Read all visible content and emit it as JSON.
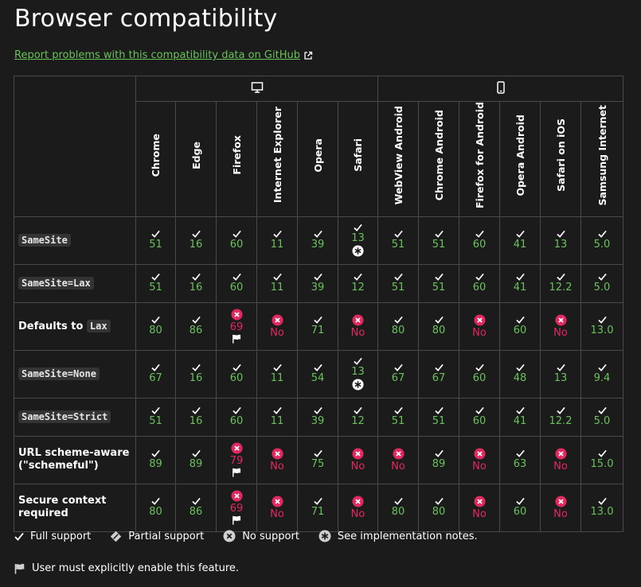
{
  "title": "Browser compatibility",
  "report_link": "Report problems with this compatibility data on GitHub",
  "platforms": [
    {
      "name": "desktop-icon",
      "span": 6
    },
    {
      "name": "mobile-icon",
      "span": 6
    }
  ],
  "browsers": [
    "Chrome",
    "Edge",
    "Firefox",
    "Internet Explorer",
    "Opera",
    "Safari",
    "WebView Android",
    "Chrome Android",
    "Firefox for Android",
    "Opera Android",
    "Safari on iOS",
    "Samsung Internet"
  ],
  "rows": [
    {
      "label": "",
      "code": "SameSite",
      "after": "",
      "height": 60,
      "cells": [
        {
          "s": "yes",
          "v": "51"
        },
        {
          "s": "yes",
          "v": "16"
        },
        {
          "s": "yes",
          "v": "60"
        },
        {
          "s": "yes",
          "v": "11"
        },
        {
          "s": "yes",
          "v": "39"
        },
        {
          "s": "yes",
          "v": "13",
          "note": true
        },
        {
          "s": "yes",
          "v": "51"
        },
        {
          "s": "yes",
          "v": "51"
        },
        {
          "s": "yes",
          "v": "60"
        },
        {
          "s": "yes",
          "v": "41"
        },
        {
          "s": "yes",
          "v": "13"
        },
        {
          "s": "yes",
          "v": "5.0"
        }
      ]
    },
    {
      "label": "",
      "code": "SameSite=Lax",
      "after": "",
      "height": 48,
      "cells": [
        {
          "s": "yes",
          "v": "51"
        },
        {
          "s": "yes",
          "v": "16"
        },
        {
          "s": "yes",
          "v": "60"
        },
        {
          "s": "yes",
          "v": "11"
        },
        {
          "s": "yes",
          "v": "39"
        },
        {
          "s": "yes",
          "v": "12"
        },
        {
          "s": "yes",
          "v": "51"
        },
        {
          "s": "yes",
          "v": "51"
        },
        {
          "s": "yes",
          "v": "60"
        },
        {
          "s": "yes",
          "v": "41"
        },
        {
          "s": "yes",
          "v": "12.2"
        },
        {
          "s": "yes",
          "v": "5.0"
        }
      ]
    },
    {
      "label": "Defaults to ",
      "code": "Lax",
      "after": "",
      "height": 60,
      "cells": [
        {
          "s": "yes",
          "v": "80"
        },
        {
          "s": "yes",
          "v": "86"
        },
        {
          "s": "no",
          "v": "69",
          "flag": true
        },
        {
          "s": "no",
          "v": "No"
        },
        {
          "s": "yes",
          "v": "71"
        },
        {
          "s": "no",
          "v": "No"
        },
        {
          "s": "yes",
          "v": "80"
        },
        {
          "s": "yes",
          "v": "80"
        },
        {
          "s": "no",
          "v": "No"
        },
        {
          "s": "yes",
          "v": "60"
        },
        {
          "s": "no",
          "v": "No"
        },
        {
          "s": "yes",
          "v": "13.0"
        }
      ]
    },
    {
      "label": "",
      "code": "SameSite=None",
      "after": "",
      "height": 60,
      "cells": [
        {
          "s": "yes",
          "v": "67"
        },
        {
          "s": "yes",
          "v": "16"
        },
        {
          "s": "yes",
          "v": "60"
        },
        {
          "s": "yes",
          "v": "11"
        },
        {
          "s": "yes",
          "v": "54"
        },
        {
          "s": "yes",
          "v": "13",
          "note": true
        },
        {
          "s": "yes",
          "v": "67"
        },
        {
          "s": "yes",
          "v": "67"
        },
        {
          "s": "yes",
          "v": "60"
        },
        {
          "s": "yes",
          "v": "48"
        },
        {
          "s": "yes",
          "v": "13"
        },
        {
          "s": "yes",
          "v": "9.4"
        }
      ]
    },
    {
      "label": "",
      "code": "SameSite=Strict",
      "after": "",
      "height": 48,
      "cells": [
        {
          "s": "yes",
          "v": "51"
        },
        {
          "s": "yes",
          "v": "16"
        },
        {
          "s": "yes",
          "v": "60"
        },
        {
          "s": "yes",
          "v": "11"
        },
        {
          "s": "yes",
          "v": "39"
        },
        {
          "s": "yes",
          "v": "12"
        },
        {
          "s": "yes",
          "v": "51"
        },
        {
          "s": "yes",
          "v": "51"
        },
        {
          "s": "yes",
          "v": "60"
        },
        {
          "s": "yes",
          "v": "41"
        },
        {
          "s": "yes",
          "v": "12.2"
        },
        {
          "s": "yes",
          "v": "5.0"
        }
      ]
    },
    {
      "label": "URL scheme-aware (\"schemeful\")",
      "code": "",
      "after": "",
      "height": 60,
      "cells": [
        {
          "s": "yes",
          "v": "89"
        },
        {
          "s": "yes",
          "v": "89"
        },
        {
          "s": "no",
          "v": "79",
          "flag": true
        },
        {
          "s": "no",
          "v": "No"
        },
        {
          "s": "yes",
          "v": "75"
        },
        {
          "s": "no",
          "v": "No"
        },
        {
          "s": "no",
          "v": "No"
        },
        {
          "s": "yes",
          "v": "89"
        },
        {
          "s": "no",
          "v": "No"
        },
        {
          "s": "yes",
          "v": "63"
        },
        {
          "s": "no",
          "v": "No"
        },
        {
          "s": "yes",
          "v": "15.0"
        }
      ]
    },
    {
      "label": "Secure context required",
      "code": "",
      "after": "",
      "height": 60,
      "cells": [
        {
          "s": "yes",
          "v": "80"
        },
        {
          "s": "yes",
          "v": "86"
        },
        {
          "s": "no",
          "v": "69",
          "flag": true
        },
        {
          "s": "no",
          "v": "No"
        },
        {
          "s": "yes",
          "v": "71"
        },
        {
          "s": "no",
          "v": "No"
        },
        {
          "s": "yes",
          "v": "80"
        },
        {
          "s": "yes",
          "v": "80"
        },
        {
          "s": "no",
          "v": "No"
        },
        {
          "s": "yes",
          "v": "60"
        },
        {
          "s": "no",
          "v": "No"
        },
        {
          "s": "yes",
          "v": "13.0"
        }
      ]
    }
  ],
  "legend": {
    "full": "Full support",
    "partial": "Partial support",
    "none": "No support",
    "notes": "See implementation notes.",
    "flag": "User must explicitly enable this feature."
  },
  "colors": {
    "yes": "#69c25a",
    "no": "#e2295f",
    "bg": "#1b1b1b",
    "border": "#4a4a4a"
  }
}
